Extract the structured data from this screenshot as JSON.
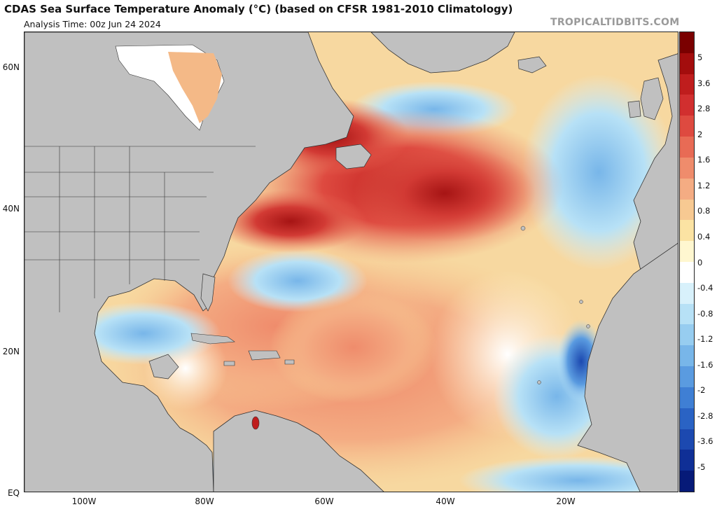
{
  "header": {
    "title": "CDAS Sea Surface Temperature Anomaly (°C) (based on CFSR 1981-2010 Climatology)",
    "analysis_time": "Analysis Time: 00z Jun 24 2024",
    "credit": "TROPICALTIDBITS.COM"
  },
  "map": {
    "lat_ticks": [
      "60N",
      "40N",
      "20N",
      "EQ"
    ],
    "lon_ticks": [
      "100W",
      "80W",
      "60W",
      "40W",
      "20W"
    ],
    "land_color": "#c0c0c0",
    "ice_color": "#ffffff"
  },
  "colorbar": {
    "labels": [
      "5",
      "3.6",
      "2.8",
      "2",
      "1.6",
      "1.2",
      "0.8",
      "0.4",
      "0",
      "-0.4",
      "-0.8",
      "-1.2",
      "-1.6",
      "-2",
      "-2.8",
      "-3.6",
      "-5"
    ],
    "colors": [
      "#7a0000",
      "#a30d0d",
      "#bf1d1d",
      "#d12f2f",
      "#de4a40",
      "#e86b55",
      "#ef8c6c",
      "#f4ac83",
      "#f7c992",
      "#fbe3a3",
      "#fff7d0",
      "#ffffff",
      "#d8f1fb",
      "#b7e1f6",
      "#97cdf0",
      "#78b6e9",
      "#5a9be0",
      "#3f7fd4",
      "#2a63c4",
      "#1c49b0",
      "#0f2f96",
      "#061a78"
    ]
  }
}
